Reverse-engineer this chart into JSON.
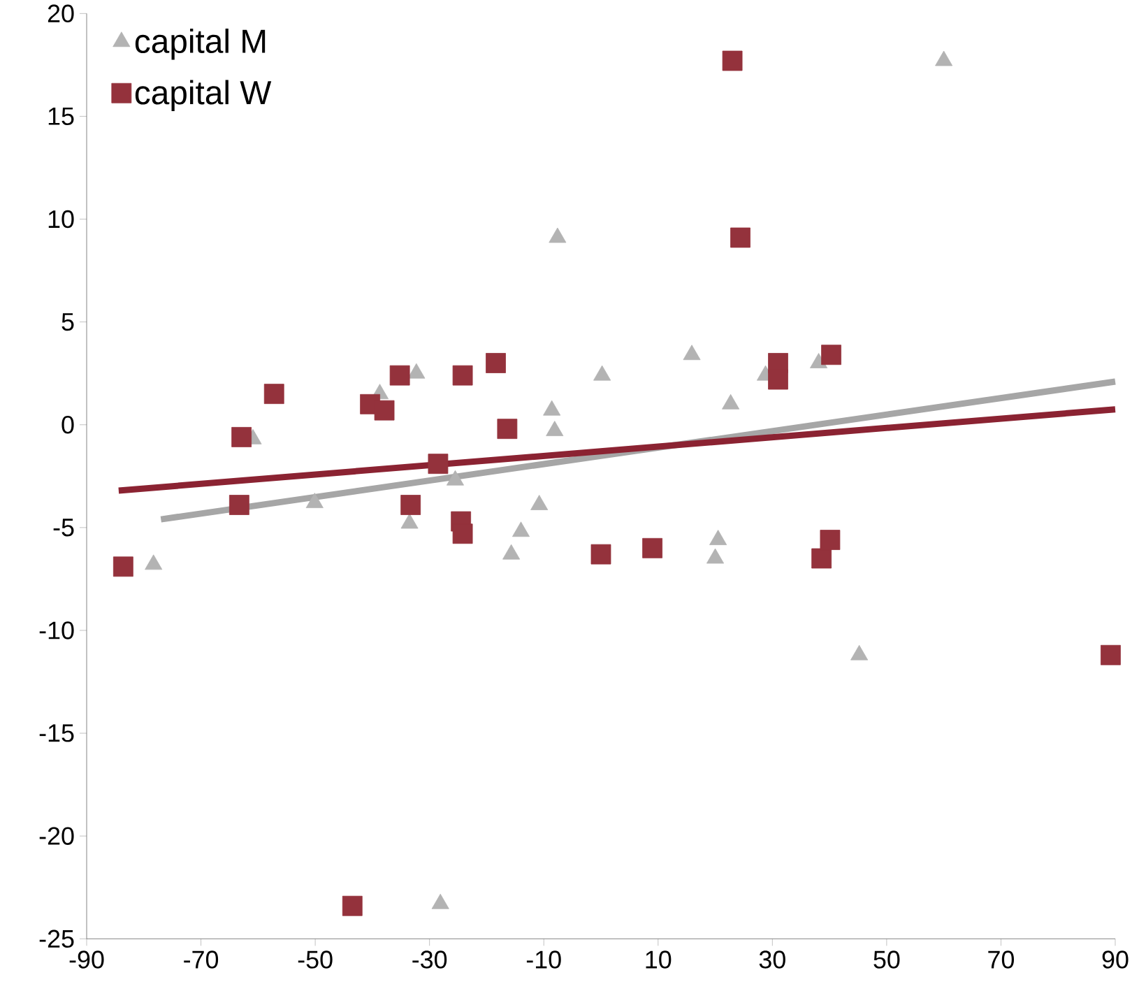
{
  "chart_data": {
    "type": "scatter",
    "legend": "top left",
    "grid": false,
    "xlim": [
      -90,
      90
    ],
    "xticks": [
      -90,
      -70,
      -50,
      -30,
      -10,
      10,
      30,
      50,
      70,
      90
    ],
    "ylim": [
      -25,
      20
    ],
    "yticks": [
      -25,
      -20,
      -15,
      -10,
      -5,
      0,
      5,
      10,
      15,
      20
    ],
    "series": [
      {
        "name": "capital M",
        "color": "#b3b3b3",
        "marker": "triangle",
        "x": [
          60,
          -7.6,
          15.9,
          22.7,
          0.2,
          28.8,
          38.1,
          -32.3,
          -38.7,
          -8.6,
          -8.1,
          -25.5,
          -60.9,
          -50.1,
          -33.5,
          -10.8,
          -14,
          -15.7,
          -78.3,
          20.5,
          20,
          45.2,
          -28.1
        ],
        "values": [
          17.7,
          9.1,
          3.4,
          1,
          2.4,
          2.4,
          3,
          2.5,
          1.5,
          0.7,
          -0.3,
          -2.7,
          -0.7,
          -3.8,
          -4.8,
          -3.9,
          -5.2,
          -6.3,
          -6.8,
          -5.6,
          -6.5,
          -11.2,
          -23.3
        ]
      },
      {
        "name": "capital W",
        "color": "#94323c",
        "marker": "square",
        "x": [
          23,
          24.4,
          -57.2,
          -62.9,
          -35.2,
          -24.2,
          -18.4,
          -40.4,
          -37.9,
          -16.4,
          31,
          31,
          40.3,
          -28.5,
          -63.3,
          -33.3,
          -24.5,
          -24.2,
          0,
          9,
          38.6,
          40.1,
          -83.6,
          89.2,
          -43.5
        ],
        "values": [
          17.7,
          9.1,
          1.5,
          -0.6,
          2.4,
          2.4,
          3,
          1,
          0.7,
          -0.2,
          3,
          2.2,
          3.4,
          -1.9,
          -3.9,
          -3.9,
          -4.7,
          -5.3,
          -6.3,
          -6,
          -6.5,
          -5.6,
          -6.9,
          -11.2,
          -23.4
        ]
      },
      {
        "type": "line",
        "color": "#a6a6a6",
        "x": [
          -77,
          90
        ],
        "values": [
          -4.6,
          2.1
        ]
      },
      {
        "type": "line",
        "color": "#8b2332",
        "x": [
          -84.4,
          90
        ],
        "values": [
          -3.2,
          0.75
        ]
      }
    ]
  }
}
